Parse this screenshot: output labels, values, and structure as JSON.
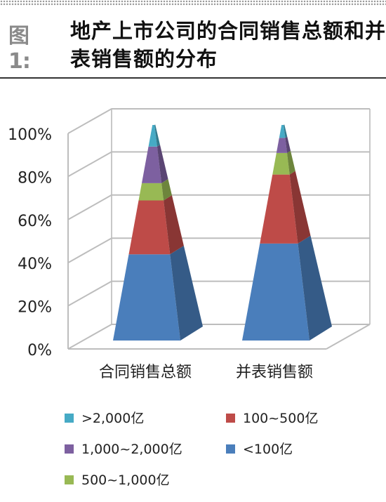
{
  "header": {
    "figure_label": "图1:",
    "title": "地产上市公司的合同销售总额和并表销售额的分布"
  },
  "chart_data": {
    "type": "bar",
    "subtype": "3d-pyramid-stacked-percent",
    "title": "地产上市公司的合同销售总额和并表销售额的分布",
    "categories": [
      "合同销售总额",
      "并表销售额"
    ],
    "series": [
      {
        "name": "<100亿",
        "color": "#4a7ebb",
        "values": [
          40,
          45
        ]
      },
      {
        "name": "100~500亿",
        "color": "#be4b48",
        "values": [
          25,
          32
        ]
      },
      {
        "name": "500~1,000亿",
        "color": "#98b954",
        "values": [
          8,
          10
        ]
      },
      {
        "name": "1,000~2,000亿",
        "color": "#7d60a0",
        "values": [
          17,
          7
        ]
      },
      {
        "name": ">2,000亿",
        "color": "#46aac5",
        "values": [
          10,
          6
        ]
      }
    ],
    "yticks": [
      "0%",
      "20%",
      "40%",
      "60%",
      "80%",
      "100%"
    ],
    "ylim": [
      0,
      100
    ],
    "grid": true,
    "legend": {
      "placement": "bottom",
      "order": [
        ">2,000亿",
        "100~500亿",
        "1,000~2,000亿",
        "<100亿",
        "500~1,000亿"
      ]
    }
  }
}
